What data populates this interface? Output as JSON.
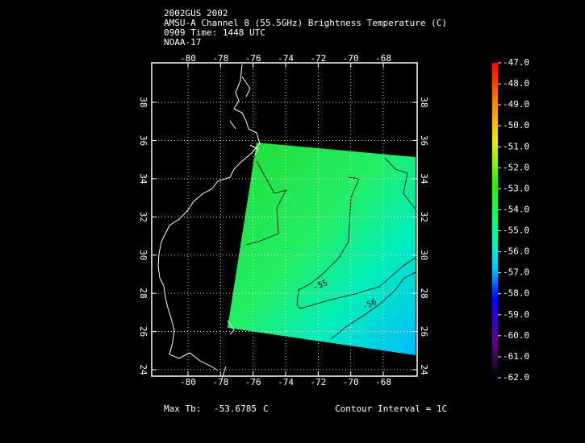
{
  "header": {
    "lines": [
      "2002GUS 2002",
      "AMSU-A Channel 8 (55.5GHz) Brightness Temperature (C)",
      "0909 Time: 1448 UTC",
      "NOAA-17"
    ]
  },
  "map": {
    "lon_ticks": [
      -80,
      -78,
      -76,
      -74,
      -72,
      -70,
      -68
    ],
    "lat_ticks": [
      24,
      26,
      28,
      30,
      32,
      34,
      36,
      38
    ],
    "contour_labels": [
      "-55",
      "-56"
    ]
  },
  "colorbar": {
    "labels": [
      "-47.0",
      "-48.0",
      "-49.0",
      "-50.0",
      "-51.0",
      "-52.0",
      "-53.0",
      "-54.0",
      "-55.0",
      "-56.0",
      "-57.0",
      "-58.0",
      "-59.0",
      "-60.0",
      "-61.0",
      "-62.0"
    ]
  },
  "footer": {
    "max_label": "Max Tb:",
    "max_value": "-53.6785",
    "max_unit": "C",
    "contour_interval": "Contour Interval = 1C"
  }
}
